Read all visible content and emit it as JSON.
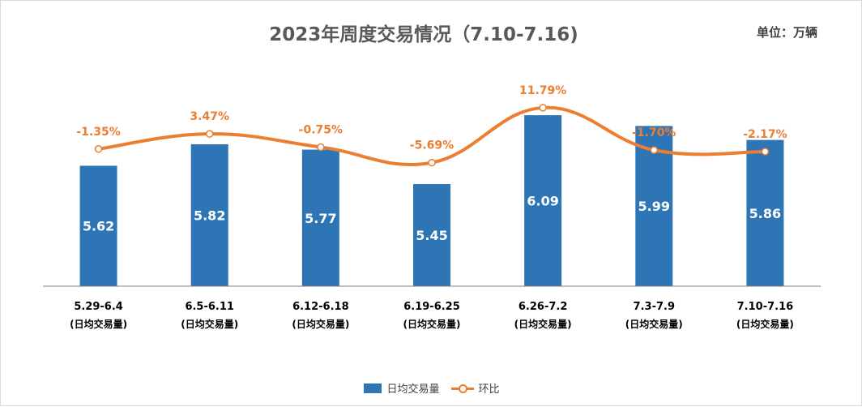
{
  "title": "2023年周度交易情况（7.10-7.16)",
  "unit": "单位：万辆",
  "legend": {
    "bar_label": "日均交易量",
    "line_label": "环比"
  },
  "colors": {
    "bar": "#2e75b6",
    "line": "#ed7d31",
    "bar_text": "#ffffff",
    "axis_text": "#000000"
  },
  "chart_data": {
    "type": "bar",
    "title": "2023年周度交易情况（7.10-7.16)",
    "xlabel": "",
    "ylabel": "",
    "categories": [
      "5.29-6.4",
      "6.5-6.11",
      "6.12-6.18",
      "6.19-6.25",
      "6.26-7.2",
      "7.3-7.9",
      "7.10-7.16"
    ],
    "category_sublabel": "(日均交易量)",
    "series": [
      {
        "name": "日均交易量",
        "type": "bar",
        "values": [
          5.62,
          5.82,
          5.77,
          5.45,
          6.09,
          5.99,
          5.86
        ],
        "labels": [
          "5.62",
          "5.82",
          "5.77",
          "5.45",
          "6.09",
          "5.99",
          "5.86"
        ]
      },
      {
        "name": "环比",
        "type": "line",
        "values": [
          -1.35,
          3.47,
          -0.75,
          -5.69,
          11.79,
          -1.7,
          -2.17
        ],
        "labels": [
          "-1.35%",
          "3.47%",
          "-0.75%",
          "-5.69%",
          "11.79%",
          "-1.70%",
          "-2.17%"
        ]
      }
    ],
    "ylim": [
      4.5,
      6.4
    ],
    "y2lim": [
      -45,
      20
    ],
    "grid": false,
    "legend_position": "bottom"
  }
}
